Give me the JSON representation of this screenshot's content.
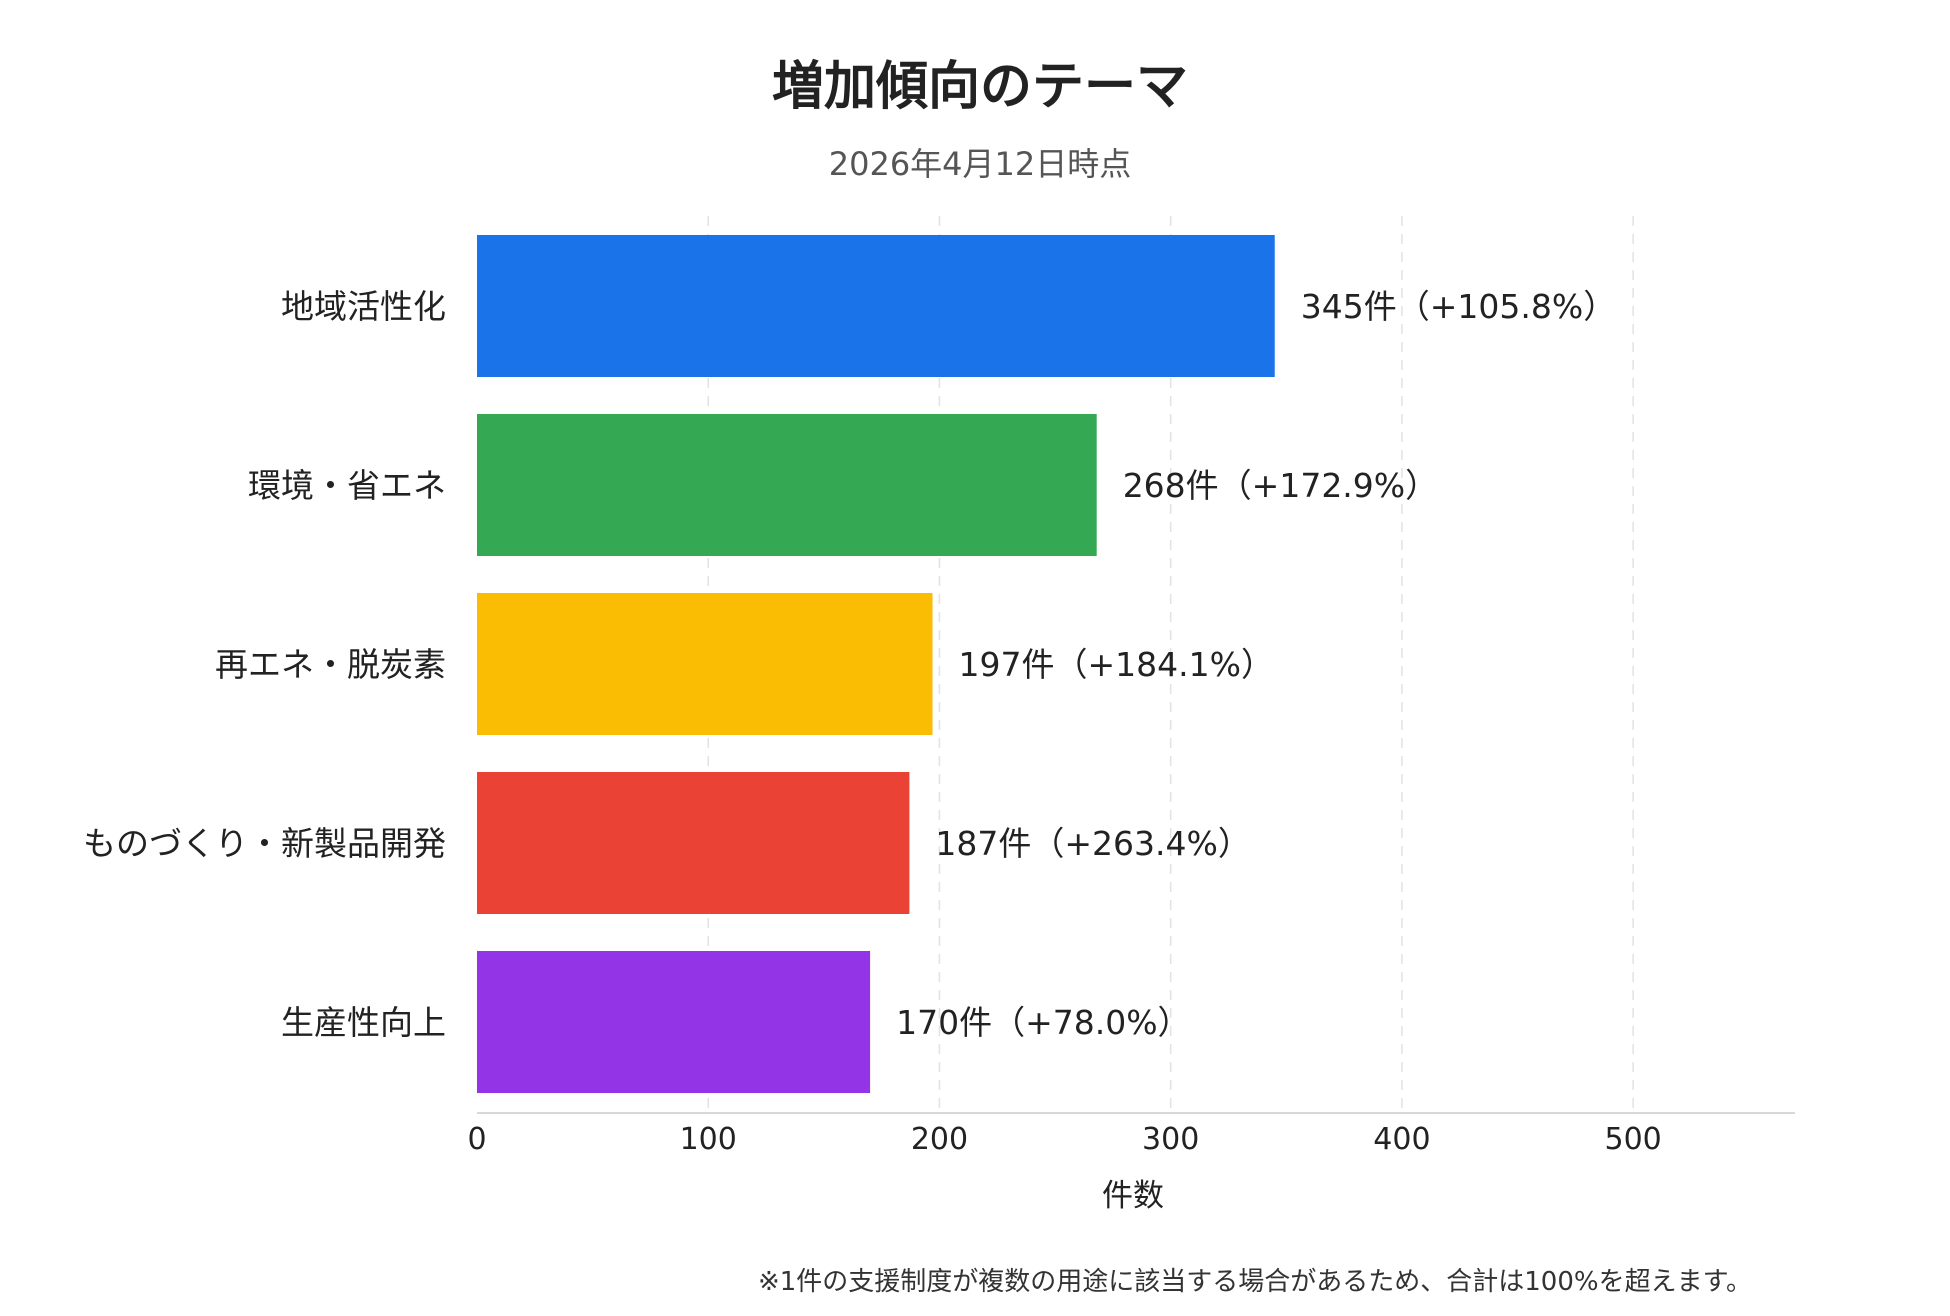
{
  "chart_data": {
    "type": "bar",
    "orientation": "horizontal",
    "title": "増加傾向のテーマ",
    "subtitle": "2026年4月12日時点",
    "categories": [
      "地域活性化",
      "環境・省エネ",
      "再エネ・脱炭素",
      "ものづくり・新製品開発",
      "生産性向上"
    ],
    "values": [
      345,
      268,
      197,
      187,
      170
    ],
    "value_labels": [
      "345件（+105.8%）",
      "268件（+172.9%）",
      "197件（+184.1%）",
      "187件（+263.4%）",
      "170件（+78.0%）"
    ],
    "colors": [
      "#1a73e8",
      "#34a853",
      "#fbbc04",
      "#ea4335",
      "#9334e6"
    ],
    "xlabel": "件数",
    "ylabel": "",
    "xlim": [
      0,
      570
    ],
    "xticks": [
      0,
      100,
      200,
      300,
      400,
      500
    ],
    "xtick_labels": [
      "0",
      "100",
      "200",
      "300",
      "400",
      "500"
    ],
    "grid": true,
    "footnote": "※1件の支援制度が複数の用途に該当する場合があるため、合計は100%を超えます。"
  }
}
